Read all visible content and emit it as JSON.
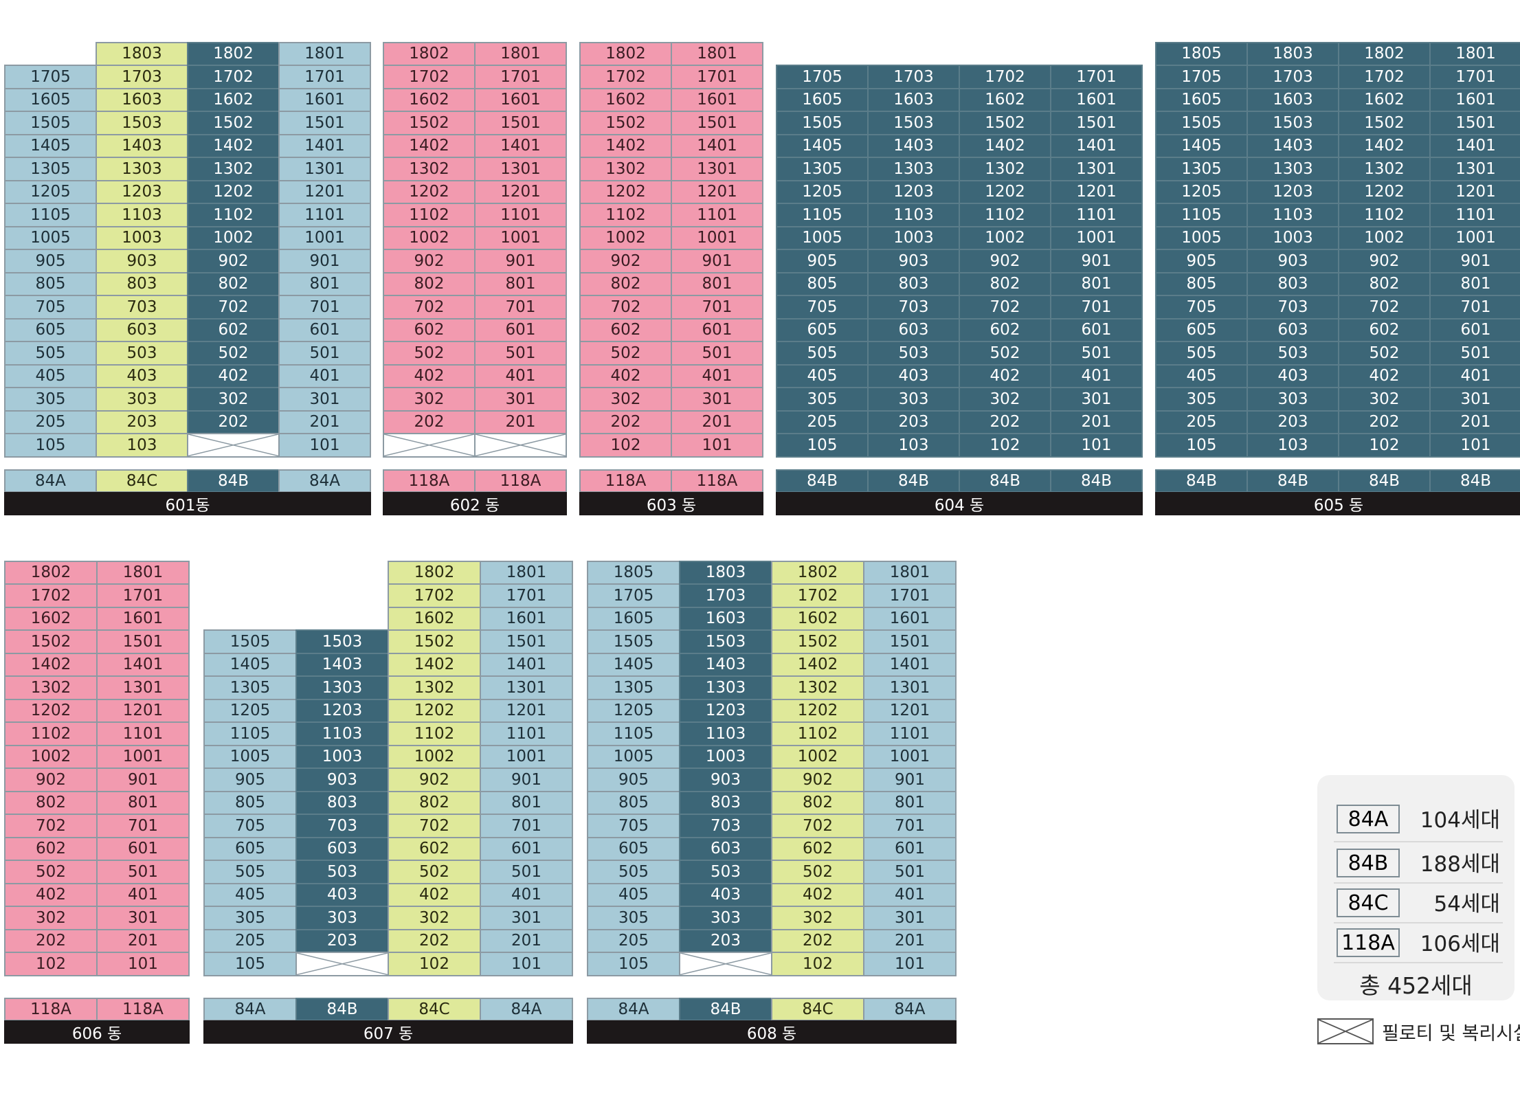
{
  "colors": {
    "84A": "#a7cad7",
    "84B": "#3c6677",
    "84C": "#dfe99a",
    "118A": "#f29aaf",
    "label_bar": "#1c1819"
  },
  "buildings": [
    {
      "name": "601동",
      "types": [
        "84A",
        "84C",
        "84B",
        "84A"
      ],
      "columns": [
        {
          "type": "84A",
          "units": [
            "1705",
            "1605",
            "1505",
            "1405",
            "1305",
            "1205",
            "1105",
            "1005",
            "905",
            "805",
            "705",
            "605",
            "505",
            "405",
            "305",
            "205",
            "105"
          ]
        },
        {
          "type": "84C",
          "units": [
            "1803",
            "1703",
            "1603",
            "1503",
            "1403",
            "1303",
            "1203",
            "1103",
            "1003",
            "903",
            "803",
            "703",
            "603",
            "503",
            "403",
            "303",
            "203",
            "103"
          ]
        },
        {
          "type": "84B",
          "units": [
            "1802",
            "1702",
            "1602",
            "1502",
            "1402",
            "1302",
            "1202",
            "1102",
            "1002",
            "902",
            "802",
            "702",
            "602",
            "502",
            "402",
            "302",
            "202",
            ""
          ]
        },
        {
          "type": "84A",
          "units": [
            "1801",
            "1701",
            "1601",
            "1501",
            "1401",
            "1301",
            "1201",
            "1101",
            "1001",
            "901",
            "801",
            "701",
            "601",
            "501",
            "401",
            "301",
            "201",
            "101"
          ]
        }
      ]
    },
    {
      "name": "602 동",
      "types": [
        "118A",
        "118A"
      ],
      "columns": [
        {
          "type": "118A",
          "units": [
            "1802",
            "1702",
            "1602",
            "1502",
            "1402",
            "1302",
            "1202",
            "1102",
            "1002",
            "902",
            "802",
            "702",
            "602",
            "502",
            "402",
            "302",
            "202",
            ""
          ]
        },
        {
          "type": "118A",
          "units": [
            "1801",
            "1701",
            "1601",
            "1501",
            "1401",
            "1301",
            "1201",
            "1101",
            "1001",
            "901",
            "801",
            "701",
            "601",
            "501",
            "401",
            "301",
            "201",
            ""
          ]
        }
      ]
    },
    {
      "name": "603 동",
      "types": [
        "118A",
        "118A"
      ],
      "columns": [
        {
          "type": "118A",
          "units": [
            "1802",
            "1702",
            "1602",
            "1502",
            "1402",
            "1302",
            "1202",
            "1102",
            "1002",
            "902",
            "802",
            "702",
            "602",
            "502",
            "402",
            "302",
            "202",
            "102"
          ]
        },
        {
          "type": "118A",
          "units": [
            "1801",
            "1701",
            "1601",
            "1501",
            "1401",
            "1301",
            "1201",
            "1101",
            "1001",
            "901",
            "801",
            "701",
            "601",
            "501",
            "401",
            "301",
            "201",
            "101"
          ]
        }
      ]
    },
    {
      "name": "604 동",
      "types": [
        "84B",
        "84B",
        "84B",
        "84B"
      ],
      "columns": [
        {
          "type": "84B",
          "units": [
            "1705",
            "1605",
            "1505",
            "1405",
            "1305",
            "1205",
            "1105",
            "1005",
            "905",
            "805",
            "705",
            "605",
            "505",
            "405",
            "305",
            "205",
            "105"
          ]
        },
        {
          "type": "84B",
          "units": [
            "1703",
            "1603",
            "1503",
            "1403",
            "1303",
            "1203",
            "1103",
            "1003",
            "903",
            "803",
            "703",
            "603",
            "503",
            "403",
            "303",
            "203",
            "103"
          ]
        },
        {
          "type": "84B",
          "units": [
            "1702",
            "1602",
            "1502",
            "1402",
            "1302",
            "1202",
            "1102",
            "1002",
            "902",
            "802",
            "702",
            "602",
            "502",
            "402",
            "302",
            "202",
            "102"
          ]
        },
        {
          "type": "84B",
          "units": [
            "1701",
            "1601",
            "1501",
            "1401",
            "1301",
            "1201",
            "1101",
            "1001",
            "901",
            "801",
            "701",
            "601",
            "501",
            "401",
            "301",
            "201",
            "101"
          ]
        }
      ]
    },
    {
      "name": "605 동",
      "types": [
        "84B",
        "84B",
        "84B",
        "84B"
      ],
      "columns": [
        {
          "type": "84B",
          "units": [
            "1805",
            "1705",
            "1605",
            "1505",
            "1405",
            "1305",
            "1205",
            "1105",
            "1005",
            "905",
            "805",
            "705",
            "605",
            "505",
            "405",
            "305",
            "205",
            "105"
          ]
        },
        {
          "type": "84B",
          "units": [
            "1803",
            "1703",
            "1603",
            "1503",
            "1403",
            "1303",
            "1203",
            "1103",
            "1003",
            "903",
            "803",
            "703",
            "603",
            "503",
            "403",
            "303",
            "203",
            "103"
          ]
        },
        {
          "type": "84B",
          "units": [
            "1802",
            "1702",
            "1602",
            "1502",
            "1402",
            "1302",
            "1202",
            "1102",
            "1002",
            "902",
            "802",
            "702",
            "602",
            "502",
            "402",
            "302",
            "202",
            "102"
          ]
        },
        {
          "type": "84B",
          "units": [
            "1801",
            "1701",
            "1601",
            "1501",
            "1401",
            "1301",
            "1201",
            "1101",
            "1001",
            "901",
            "801",
            "701",
            "601",
            "501",
            "401",
            "301",
            "201",
            "101"
          ]
        }
      ]
    },
    {
      "name": "606 동",
      "types": [
        "118A",
        "118A"
      ],
      "columns": [
        {
          "type": "118A",
          "units": [
            "1802",
            "1702",
            "1602",
            "1502",
            "1402",
            "1302",
            "1202",
            "1102",
            "1002",
            "902",
            "802",
            "702",
            "602",
            "502",
            "402",
            "302",
            "202",
            "102"
          ]
        },
        {
          "type": "118A",
          "units": [
            "1801",
            "1701",
            "1601",
            "1501",
            "1401",
            "1301",
            "1201",
            "1101",
            "1001",
            "901",
            "801",
            "701",
            "601",
            "501",
            "401",
            "301",
            "201",
            "101"
          ]
        }
      ]
    },
    {
      "name": "607 동",
      "types": [
        "84A",
        "84B",
        "84C",
        "84A"
      ],
      "columns": [
        {
          "type": "84A",
          "units": [
            "1505",
            "1405",
            "1305",
            "1205",
            "1105",
            "1005",
            "905",
            "805",
            "705",
            "605",
            "505",
            "405",
            "305",
            "205",
            "105"
          ]
        },
        {
          "type": "84B",
          "units": [
            "1503",
            "1403",
            "1303",
            "1203",
            "1103",
            "1003",
            "903",
            "803",
            "703",
            "603",
            "503",
            "403",
            "303",
            "203",
            ""
          ]
        },
        {
          "type": "84C",
          "units": [
            "1802",
            "1702",
            "1602",
            "1502",
            "1402",
            "1302",
            "1202",
            "1102",
            "1002",
            "902",
            "802",
            "702",
            "602",
            "502",
            "402",
            "302",
            "202",
            "102"
          ]
        },
        {
          "type": "84A",
          "units": [
            "1801",
            "1701",
            "1601",
            "1501",
            "1401",
            "1301",
            "1201",
            "1101",
            "1001",
            "901",
            "801",
            "701",
            "601",
            "501",
            "401",
            "301",
            "201",
            "101"
          ]
        }
      ]
    },
    {
      "name": "608 동",
      "types": [
        "84A",
        "84B",
        "84C",
        "84A"
      ],
      "columns": [
        {
          "type": "84A",
          "units": [
            "1805",
            "1705",
            "1605",
            "1505",
            "1405",
            "1305",
            "1205",
            "1105",
            "1005",
            "905",
            "805",
            "705",
            "605",
            "505",
            "405",
            "305",
            "205",
            "105"
          ]
        },
        {
          "type": "84B",
          "units": [
            "1803",
            "1703",
            "1603",
            "1503",
            "1403",
            "1303",
            "1203",
            "1103",
            "1003",
            "903",
            "803",
            "703",
            "603",
            "503",
            "403",
            "303",
            "203",
            ""
          ]
        },
        {
          "type": "84C",
          "units": [
            "1802",
            "1702",
            "1602",
            "1502",
            "1402",
            "1302",
            "1202",
            "1102",
            "1002",
            "902",
            "802",
            "702",
            "602",
            "502",
            "402",
            "302",
            "202",
            "102"
          ]
        },
        {
          "type": "84A",
          "units": [
            "1801",
            "1701",
            "1601",
            "1501",
            "1401",
            "1301",
            "1201",
            "1101",
            "1001",
            "901",
            "801",
            "701",
            "601",
            "501",
            "401",
            "301",
            "201",
            "101"
          ]
        }
      ]
    }
  ],
  "legend": {
    "items": [
      {
        "type": "84A",
        "count": "104세대"
      },
      {
        "type": "84B",
        "count": "188세대"
      },
      {
        "type": "84C",
        "count": "54세대"
      },
      {
        "type": "118A",
        "count": "106세대"
      }
    ],
    "total": "총 452세대",
    "pilotis_label": "필로티 및 복리시설"
  }
}
